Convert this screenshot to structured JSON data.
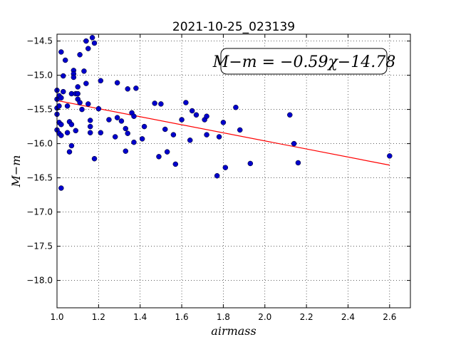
{
  "chart_data": {
    "type": "scatter",
    "title": "2021-10-25_023139",
    "xlabel": "airmass",
    "ylabel": "M−m",
    "xlim": [
      1.0,
      2.7
    ],
    "ylim": [
      -18.4,
      -14.4
    ],
    "x_ticks": [
      1.0,
      1.2,
      1.4,
      1.6,
      1.8,
      2.0,
      2.2,
      2.4,
      2.6
    ],
    "x_tick_labels": [
      "1.0",
      "1.2",
      "1.4",
      "1.6",
      "1.8",
      "2.0",
      "2.2",
      "2.4",
      "2.6"
    ],
    "y_ticks": [
      -14.5,
      -15.0,
      -15.5,
      -16.0,
      -16.5,
      -17.0,
      -17.5,
      -18.0
    ],
    "y_tick_labels": [
      "−14.5",
      "−15.0",
      "−15.5",
      "−16.0",
      "−16.5",
      "−17.0",
      "−17.5",
      "−18.0"
    ],
    "grid": true,
    "annotation": "M−m = −0.59χ−14.78",
    "fit": {
      "slope": -0.59,
      "intercept": -14.78,
      "x_range": [
        1.0,
        2.6
      ],
      "color": "#ff0000"
    },
    "point_color": "#0000cc",
    "points": [
      [
        1.0,
        -15.22
      ],
      [
        1.0,
        -15.35
      ],
      [
        1.0,
        -15.48
      ],
      [
        1.0,
        -15.57
      ],
      [
        1.0,
        -15.8
      ],
      [
        1.01,
        -15.3
      ],
      [
        1.01,
        -15.45
      ],
      [
        1.01,
        -15.69
      ],
      [
        1.01,
        -15.85
      ],
      [
        1.02,
        -14.66
      ],
      [
        1.02,
        -15.33
      ],
      [
        1.02,
        -15.72
      ],
      [
        1.02,
        -15.88
      ],
      [
        1.02,
        -16.65
      ],
      [
        1.03,
        -15.01
      ],
      [
        1.03,
        -15.24
      ],
      [
        1.04,
        -14.78
      ],
      [
        1.05,
        -15.45
      ],
      [
        1.05,
        -15.84
      ],
      [
        1.06,
        -15.68
      ],
      [
        1.06,
        -16.12
      ],
      [
        1.07,
        -15.72
      ],
      [
        1.07,
        -15.27
      ],
      [
        1.07,
        -16.03
      ],
      [
        1.08,
        -14.93
      ],
      [
        1.08,
        -14.98
      ],
      [
        1.08,
        -15.03
      ],
      [
        1.09,
        -15.27
      ],
      [
        1.09,
        -15.81
      ],
      [
        1.1,
        -15.17
      ],
      [
        1.1,
        -15.27
      ],
      [
        1.1,
        -15.35
      ],
      [
        1.11,
        -14.7
      ],
      [
        1.11,
        -15.4
      ],
      [
        1.12,
        -15.5
      ],
      [
        1.13,
        -14.94
      ],
      [
        1.14,
        -14.5
      ],
      [
        1.14,
        -15.12
      ],
      [
        1.15,
        -15.42
      ],
      [
        1.15,
        -14.61
      ],
      [
        1.16,
        -15.66
      ],
      [
        1.16,
        -15.75
      ],
      [
        1.16,
        -15.84
      ],
      [
        1.17,
        -14.45
      ],
      [
        1.18,
        -14.53
      ],
      [
        1.18,
        -16.22
      ],
      [
        1.2,
        -15.49
      ],
      [
        1.21,
        -15.08
      ],
      [
        1.21,
        -15.84
      ],
      [
        1.25,
        -15.65
      ],
      [
        1.28,
        -15.9
      ],
      [
        1.29,
        -15.11
      ],
      [
        1.29,
        -15.62
      ],
      [
        1.31,
        -15.67
      ],
      [
        1.33,
        -16.11
      ],
      [
        1.33,
        -15.78
      ],
      [
        1.34,
        -15.85
      ],
      [
        1.34,
        -15.2
      ],
      [
        1.36,
        -15.55
      ],
      [
        1.37,
        -15.6
      ],
      [
        1.37,
        -15.98
      ],
      [
        1.38,
        -15.19
      ],
      [
        1.41,
        -15.93
      ],
      [
        1.42,
        -15.75
      ],
      [
        1.47,
        -15.41
      ],
      [
        1.49,
        -16.19
      ],
      [
        1.5,
        -15.42
      ],
      [
        1.52,
        -15.79
      ],
      [
        1.53,
        -16.12
      ],
      [
        1.56,
        -15.87
      ],
      [
        1.57,
        -16.3
      ],
      [
        1.6,
        -15.65
      ],
      [
        1.62,
        -15.4
      ],
      [
        1.64,
        -15.95
      ],
      [
        1.65,
        -15.52
      ],
      [
        1.67,
        -15.58
      ],
      [
        1.71,
        -15.65
      ],
      [
        1.72,
        -15.6
      ],
      [
        1.72,
        -15.87
      ],
      [
        1.77,
        -16.47
      ],
      [
        1.78,
        -15.9
      ],
      [
        1.8,
        -15.69
      ],
      [
        1.81,
        -16.35
      ],
      [
        1.86,
        -15.47
      ],
      [
        1.88,
        -15.8
      ],
      [
        1.93,
        -16.29
      ],
      [
        2.12,
        -15.58
      ],
      [
        2.14,
        -16.0
      ],
      [
        2.16,
        -16.28
      ],
      [
        2.6,
        -16.18
      ]
    ]
  }
}
